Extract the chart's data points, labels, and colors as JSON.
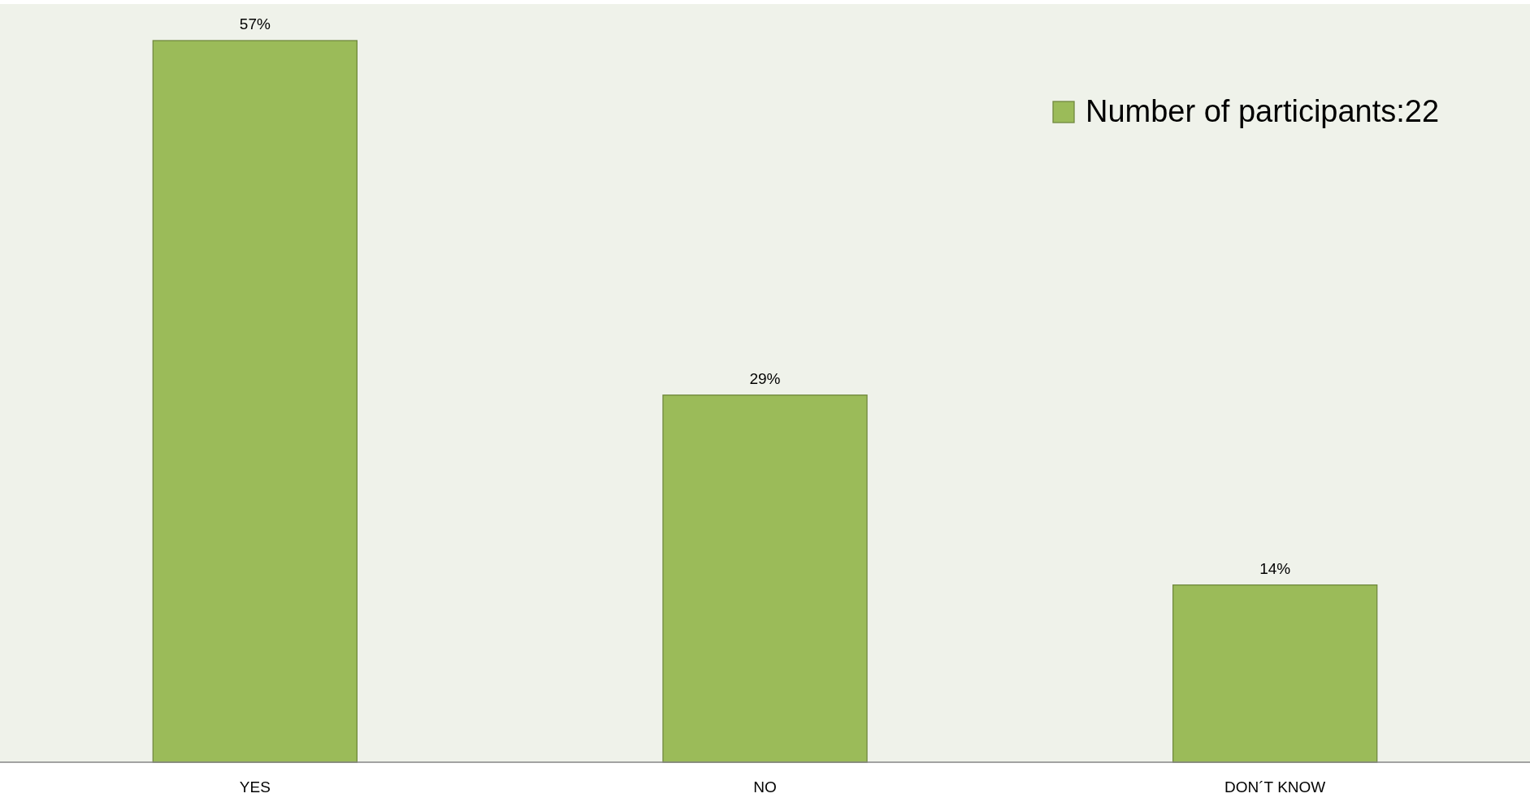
{
  "chart_data": {
    "type": "bar",
    "categories": [
      "YES",
      "NO",
      "DON´T KNOW"
    ],
    "series": [
      {
        "name": "Number of participants:22",
        "color": "#9bbb59",
        "values": [
          57,
          29,
          14
        ],
        "value_labels": [
          "57%",
          "29%",
          "14%"
        ]
      }
    ],
    "legend": "top right"
  }
}
